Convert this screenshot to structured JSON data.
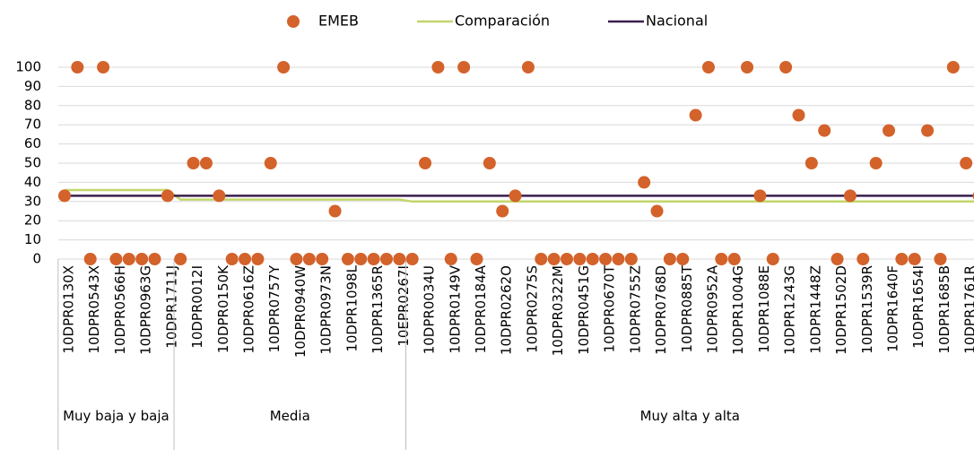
{
  "chart_data": {
    "type": "line",
    "categories": [
      "10DPR0130X",
      null,
      "10DPR0543X",
      null,
      "10DPR0566H",
      null,
      "10DPR0963G",
      null,
      "10DPR1711J",
      null,
      "10DPR0012I",
      null,
      "10DPR0150K",
      null,
      "10DPR0616Z",
      null,
      "10DPR0757Y",
      null,
      "10DPR0940W",
      null,
      "10DPR0973N",
      null,
      "10DPR1098L",
      null,
      "10DPR1365R",
      null,
      "10EPR0267I",
      null,
      "10DPR0034U",
      null,
      "10DPR0149V",
      null,
      "10DPR0184A",
      null,
      "10DPR0262O",
      null,
      "10DPR0275S",
      null,
      "10DPR0322M",
      null,
      "10DPR0451G",
      null,
      "10DPR0670T",
      null,
      "10DPR0755Z",
      null,
      "10DPR0768D",
      null,
      "10DPR0885T",
      null,
      "10DPR0952A",
      null,
      "10DPR1004G",
      null,
      "10DPR1088E",
      null,
      "10DPR1243G",
      null,
      "10DPR1448Z",
      null,
      "10DPR1502D",
      null,
      "10DPR1539R",
      null,
      "10DPR1640F",
      null,
      "10DPR1654I",
      null,
      "10DPR1685B",
      null,
      "10DPR1761R",
      null
    ],
    "groups": [
      {
        "label": "Muy baja y baja",
        "count": 9
      },
      {
        "label": "Media",
        "count": 18
      },
      {
        "label": "Muy alta y alta",
        "count": 45
      }
    ],
    "series": [
      {
        "name": "EMEB",
        "color": "#d3622b",
        "style": "markers",
        "values": [
          33,
          100,
          0,
          100,
          0,
          0,
          0,
          0,
          33,
          0,
          50,
          50,
          33,
          0,
          0,
          0,
          50,
          100,
          0,
          0,
          0,
          25,
          0,
          0,
          0,
          0,
          0,
          0,
          50,
          100,
          0,
          100,
          0,
          50,
          25,
          33,
          100,
          0,
          0,
          0,
          0,
          0,
          0,
          0,
          0,
          40,
          25,
          0,
          0,
          75,
          100,
          0,
          0,
          100,
          33,
          0,
          100,
          75,
          50,
          67,
          0,
          33,
          0,
          50,
          67,
          0,
          0,
          67,
          0,
          100,
          50,
          33
        ]
      },
      {
        "name": "Comparación",
        "color": "#c3d66a",
        "style": "line",
        "values": [
          36,
          36,
          36,
          36,
          36,
          36,
          36,
          36,
          36,
          31,
          31,
          31,
          31,
          31,
          31,
          31,
          31,
          31,
          31,
          31,
          31,
          31,
          31,
          31,
          31,
          31,
          31,
          30,
          30,
          30,
          30,
          30,
          30,
          30,
          30,
          30,
          30,
          30,
          30,
          30,
          30,
          30,
          30,
          30,
          30,
          30,
          30,
          30,
          30,
          30,
          30,
          30,
          30,
          30,
          30,
          30,
          30,
          30,
          30,
          30,
          30,
          30,
          30,
          30,
          30,
          30,
          30,
          30,
          30,
          30,
          30,
          30
        ]
      },
      {
        "name": "Nacional",
        "color": "#3a1f4e",
        "style": "line",
        "values": [
          33,
          33,
          33,
          33,
          33,
          33,
          33,
          33,
          33,
          33,
          33,
          33,
          33,
          33,
          33,
          33,
          33,
          33,
          33,
          33,
          33,
          33,
          33,
          33,
          33,
          33,
          33,
          33,
          33,
          33,
          33,
          33,
          33,
          33,
          33,
          33,
          33,
          33,
          33,
          33,
          33,
          33,
          33,
          33,
          33,
          33,
          33,
          33,
          33,
          33,
          33,
          33,
          33,
          33,
          33,
          33,
          33,
          33,
          33,
          33,
          33,
          33,
          33,
          33,
          33,
          33,
          33,
          33,
          33,
          33,
          33,
          33
        ]
      }
    ],
    "ylim": [
      0,
      100
    ],
    "yticks": [
      0,
      10,
      20,
      30,
      40,
      50,
      60,
      70,
      80,
      90,
      100
    ],
    "grid": true,
    "legend": "top"
  }
}
